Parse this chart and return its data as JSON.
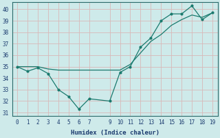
{
  "xlabel": "Humidex (Indice chaleur)",
  "x_jagged": [
    0,
    1,
    2,
    3,
    4,
    5,
    6,
    7,
    9,
    10,
    11,
    12,
    13,
    14,
    15,
    16,
    17,
    18,
    19
  ],
  "y_jagged": [
    35.0,
    34.6,
    34.9,
    34.4,
    33.0,
    32.4,
    31.3,
    32.2,
    32.0,
    34.5,
    35.0,
    36.7,
    37.5,
    39.0,
    39.6,
    39.6,
    40.3,
    39.1,
    39.7
  ],
  "x_smooth": [
    0,
    1,
    2,
    3,
    4,
    5,
    6,
    7,
    9,
    10,
    11,
    12,
    13,
    14,
    15,
    16,
    17,
    18,
    19
  ],
  "y_smooth": [
    35.0,
    35.0,
    35.0,
    34.8,
    34.7,
    34.7,
    34.7,
    34.7,
    34.7,
    34.7,
    35.2,
    36.2,
    37.2,
    37.8,
    38.6,
    39.1,
    39.5,
    39.3,
    39.7
  ],
  "line_color": "#1a7a6e",
  "bg_color": "#ceeaea",
  "grid_color": "#b8d8d8",
  "ylim": [
    30.7,
    40.6
  ],
  "yticks": [
    31,
    32,
    33,
    34,
    35,
    36,
    37,
    38,
    39,
    40
  ],
  "xlim": [
    -0.5,
    19.5
  ],
  "xticks": [
    0,
    1,
    2,
    3,
    4,
    5,
    6,
    7,
    9,
    10,
    11,
    12,
    13,
    14,
    15,
    16,
    17,
    18,
    19
  ]
}
